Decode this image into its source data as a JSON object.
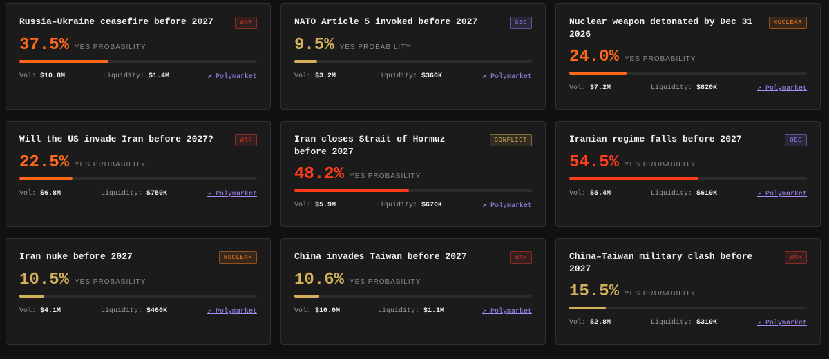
{
  "labels": {
    "yes": "YES PROBABILITY",
    "vol": "Vol:",
    "liquidity": "Liquidity:",
    "link": "↗ Polymarket"
  },
  "cards": [
    {
      "title": "Russia–Ukraine ceasefire before 2027",
      "tag": "WAR",
      "tag_color": "#d0392b",
      "probability": {
        "value": 37.5,
        "label": "37.5%"
      },
      "color": "#ff6a1a",
      "vol": "$10.8M",
      "liquidity": "$1.4M"
    },
    {
      "title": "NATO Article 5 invoked before 2027",
      "tag": "GEO",
      "tag_color": "#8b7cf0",
      "probability": {
        "value": 9.5,
        "label": "9.5%"
      },
      "color": "#d4b15a",
      "vol": "$3.2M",
      "liquidity": "$360K"
    },
    {
      "title": "Nuclear weapon detonated by Dec 31 2026",
      "tag": "NUCLEAR",
      "tag_color": "#e8781e",
      "probability": {
        "value": 24.0,
        "label": "24.0%"
      },
      "color": "#ff6a1a",
      "vol": "$7.2M",
      "liquidity": "$820K"
    },
    {
      "title": "Will the US invade Iran before 2027?",
      "tag": "WAR",
      "tag_color": "#d0392b",
      "probability": {
        "value": 22.5,
        "label": "22.5%"
      },
      "color": "#ff6a1a",
      "vol": "$6.8M",
      "liquidity": "$750K"
    },
    {
      "title": "Iran closes Strait of Hormuz before 2027",
      "tag": "CONFLICT",
      "tag_color": "#c9a24a",
      "probability": {
        "value": 48.2,
        "label": "48.2%"
      },
      "color": "#ff3d1a",
      "vol": "$5.9M",
      "liquidity": "$670K"
    },
    {
      "title": "Iranian regime falls before 2027",
      "tag": "GEO",
      "tag_color": "#8b7cf0",
      "probability": {
        "value": 54.5,
        "label": "54.5%"
      },
      "color": "#ff3d1a",
      "vol": "$5.4M",
      "liquidity": "$610K"
    },
    {
      "title": "Iran nuke before 2027",
      "tag": "NUCLEAR",
      "tag_color": "#e8781e",
      "probability": {
        "value": 10.5,
        "label": "10.5%"
      },
      "color": "#d4b15a",
      "vol": "$4.1M",
      "liquidity": "$460K"
    },
    {
      "title": "China invades Taiwan before 2027",
      "tag": "WAR",
      "tag_color": "#d0392b",
      "probability": {
        "value": 10.6,
        "label": "10.6%"
      },
      "color": "#d4b15a",
      "vol": "$10.0M",
      "liquidity": "$1.1M"
    },
    {
      "title": "China–Taiwan military clash before 2027",
      "tag": "WAR",
      "tag_color": "#d0392b",
      "probability": {
        "value": 15.5,
        "label": "15.5%"
      },
      "color": "#d4b15a",
      "vol": "$2.8M",
      "liquidity": "$310K"
    }
  ]
}
